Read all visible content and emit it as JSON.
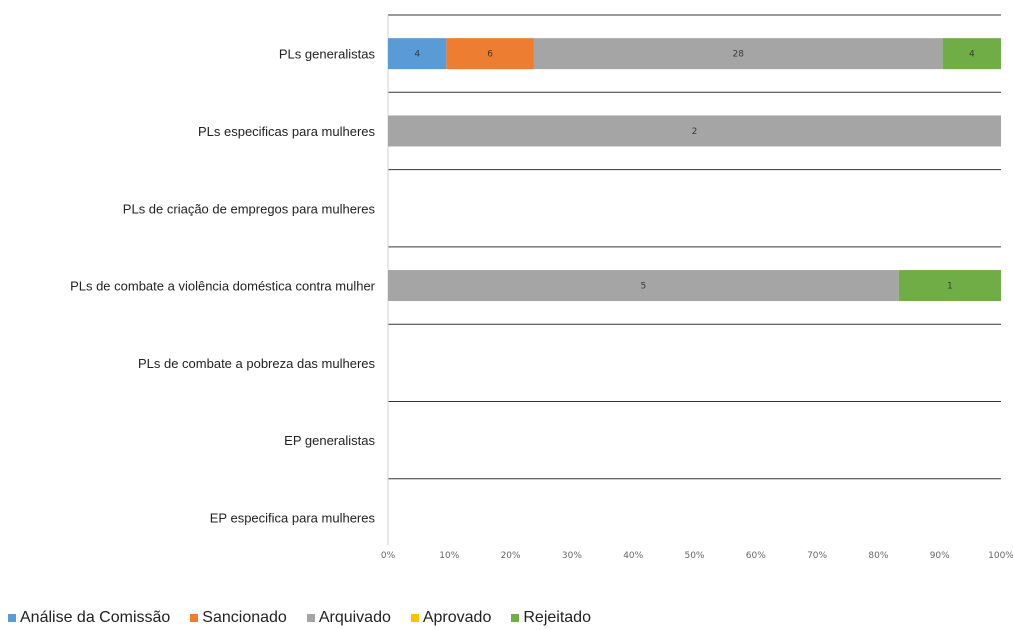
{
  "chart_data": {
    "type": "bar",
    "orientation": "horizontal",
    "stacked": "percent",
    "categories": [
      "PLs generalistas",
      "PLs especificas para mulheres",
      "PLs de criação de empregos para mulheres",
      "PLs de combate a violência doméstica contra mulher",
      "PLs de combate a pobreza das mulheres",
      "EP generalistas",
      "EP especifica para mulheres"
    ],
    "series": [
      {
        "name": "Análise da Comissão",
        "color": "#5B9BD5",
        "values": [
          4,
          0,
          0,
          0,
          0,
          0,
          0
        ]
      },
      {
        "name": "Sancionado",
        "color": "#ED7D31",
        "values": [
          6,
          0,
          0,
          0,
          0,
          0,
          0
        ]
      },
      {
        "name": "Arquivado",
        "color": "#A5A5A5",
        "values": [
          28,
          2,
          0,
          5,
          0,
          0,
          0
        ]
      },
      {
        "name": "Aprovado",
        "color": "#FFC000",
        "values": [
          0,
          0,
          0,
          0,
          0,
          0,
          0
        ]
      },
      {
        "name": "Rejeitado",
        "color": "#70AD47",
        "values": [
          4,
          0,
          0,
          1,
          0,
          0,
          0
        ]
      }
    ],
    "x_ticks": [
      "0%",
      "10%",
      "20%",
      "30%",
      "40%",
      "50%",
      "60%",
      "70%",
      "80%",
      "90%",
      "100%"
    ],
    "xlim": [
      0,
      100
    ],
    "grid": "horizontal category separators",
    "legend": "bottom-left"
  }
}
